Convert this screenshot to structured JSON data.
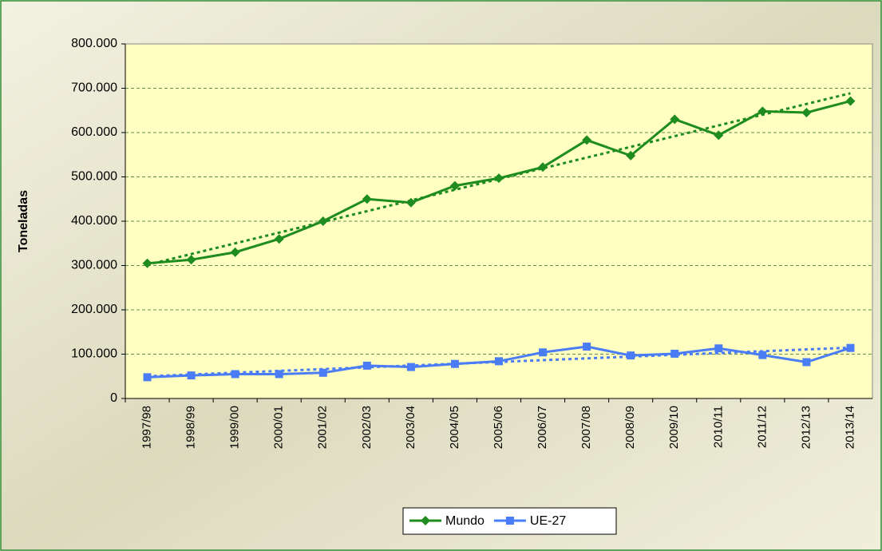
{
  "chart_data": {
    "type": "line",
    "ylabel": "Toneladas",
    "categories": [
      "1997/98",
      "1998/99",
      "1999/00",
      "2000/01",
      "2001/02",
      "2002/03",
      "2003/04",
      "2004/05",
      "2005/06",
      "2006/07",
      "2007/08",
      "2008/09",
      "2009/10",
      "2010/11",
      "2011/12",
      "2012/13",
      "2013/14"
    ],
    "series": [
      {
        "name": "Mundo",
        "color": "#1e8c1e",
        "marker": "diamond",
        "trendline": true,
        "values": [
          305000,
          313000,
          330000,
          360000,
          400000,
          450000,
          442000,
          480000,
          497000,
          522000,
          583000,
          548000,
          630000,
          594000,
          648000,
          645000,
          671000
        ]
      },
      {
        "name": "UE-27",
        "color": "#4a7cf5",
        "marker": "square",
        "trendline": true,
        "values": [
          48000,
          52000,
          55000,
          55000,
          58000,
          74000,
          71000,
          78000,
          84000,
          104000,
          117000,
          97000,
          101000,
          113000,
          98000,
          82000,
          114000
        ]
      }
    ],
    "ylim": [
      0,
      800000
    ],
    "yticks": [
      0,
      {
        "value": 100000,
        "label": "100.000"
      },
      {
        "value": 200000,
        "label": "200.000"
      },
      {
        "value": 300000,
        "label": "300.000"
      },
      {
        "value": 400000,
        "label": "400.000"
      },
      {
        "value": 500000,
        "label": "500.000"
      },
      {
        "value": 600000,
        "label": "600.000"
      },
      {
        "value": 700000,
        "label": "700.000"
      },
      {
        "value": 800000,
        "label": "800.000"
      }
    ],
    "grid": true,
    "legend": "bottom"
  }
}
